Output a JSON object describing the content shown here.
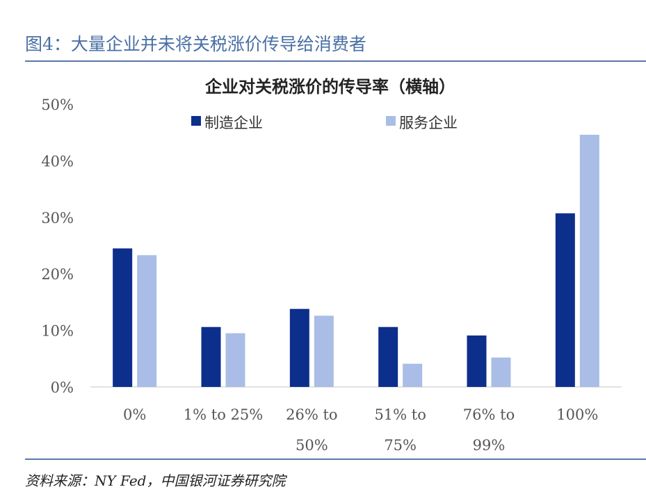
{
  "figure": {
    "title": "图4：大量企业并未将关税涨价传导给消费者",
    "source": "资料来源：NY Fed，中国银河证券研究院"
  },
  "chart_data": {
    "type": "bar",
    "title": "企业对关税涨价的传导率（横轴）",
    "categories": [
      [
        "0%"
      ],
      [
        "1% to 25%"
      ],
      [
        "26% to",
        "50%"
      ],
      [
        "51% to",
        "75%"
      ],
      [
        "76% to",
        "99%"
      ],
      [
        "100%"
      ]
    ],
    "series": [
      {
        "name": "制造企业",
        "color": "#0c2f8c",
        "values": [
          24.5,
          10.6,
          13.8,
          10.6,
          9.1,
          30.7
        ]
      },
      {
        "name": "服务企业",
        "color": "#a9bde6",
        "values": [
          23.3,
          9.5,
          12.6,
          4.1,
          5.2,
          44.6
        ]
      }
    ],
    "ylim": [
      0,
      50
    ],
    "yticks": [
      "0%",
      "10%",
      "20%",
      "30%",
      "40%",
      "50%"
    ],
    "legend_position": "top",
    "grid": false
  }
}
